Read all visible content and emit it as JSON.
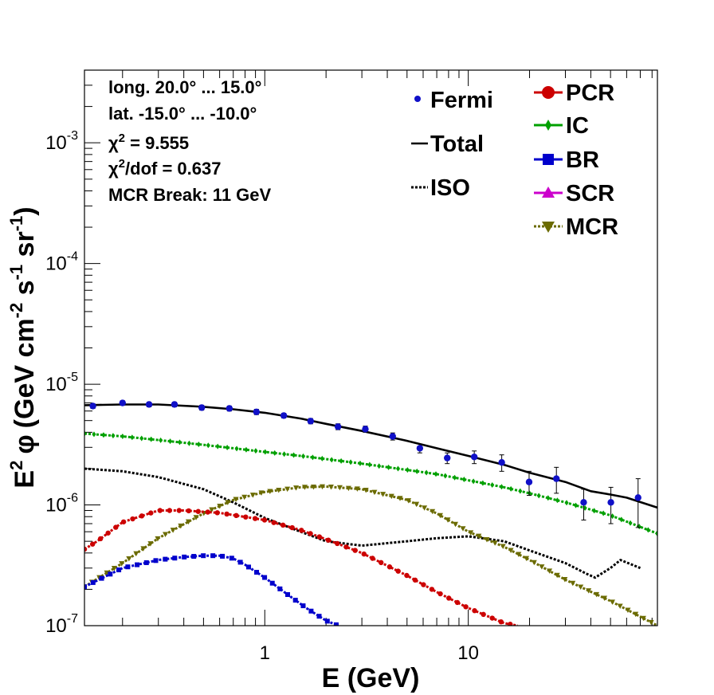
{
  "chart_data": {
    "type": "line",
    "x_scale": "log",
    "y_scale": "log",
    "xlabel": "E (GeV)",
    "ylabel_parts": {
      "e": "E",
      "e_sup": "2",
      "phi": "φ",
      "unit": "(GeV cm",
      "cm_sup": "-2",
      "s": " s",
      "s_sup": "-1",
      "sr": " sr",
      "sr_sup": "-1",
      "close": ")"
    },
    "xlim": [
      0.13,
      85
    ],
    "ylim": [
      1e-07,
      0.004
    ],
    "x_tick_labels": [
      {
        "value": 1,
        "label": "1"
      },
      {
        "value": 10,
        "label": "10"
      }
    ],
    "y_tick_labels": [
      {
        "value": 1e-07,
        "mant": "10",
        "exp": "-7"
      },
      {
        "value": 1e-06,
        "mant": "10",
        "exp": "-6"
      },
      {
        "value": 1e-05,
        "mant": "10",
        "exp": "-5"
      },
      {
        "value": 0.0001,
        "mant": "10",
        "exp": "-4"
      },
      {
        "value": 0.001,
        "mant": "10",
        "exp": "-3"
      }
    ],
    "annotations": {
      "line1": "long. 20.0° ... 15.0°",
      "line2": "lat. -15.0° ... -10.0°",
      "chi_sym": "χ",
      "chi_sup": "2",
      "chi2_rest": " = 9.555",
      "chidof_rest": "/dof = 0.637",
      "line5": "MCR Break: 11 GeV"
    },
    "legend": {
      "fermi": "Fermi",
      "total": "Total",
      "iso": "ISO",
      "pcr": "PCR",
      "ic": "IC",
      "br": "BR",
      "scr": "SCR",
      "mcr": "MCR"
    },
    "colors": {
      "fermi": "#1010c8",
      "total": "#000000",
      "iso": "#000000",
      "pcr": "#cc0000",
      "ic": "#00a000",
      "br": "#0000cc",
      "scr": "#cc00cc",
      "mcr": "#6b6b00"
    },
    "fermi_points": [
      {
        "x": 0.143,
        "y": 6.6e-06,
        "err": 3e-07
      },
      {
        "x": 0.2,
        "y": 7e-06,
        "err": 3e-07
      },
      {
        "x": 0.27,
        "y": 6.8e-06,
        "err": 3e-07
      },
      {
        "x": 0.36,
        "y": 6.8e-06,
        "err": 3e-07
      },
      {
        "x": 0.49,
        "y": 6.4e-06,
        "err": 3e-07
      },
      {
        "x": 0.67,
        "y": 6.3e-06,
        "err": 3e-07
      },
      {
        "x": 0.91,
        "y": 5.9e-06,
        "err": 3e-07
      },
      {
        "x": 1.24,
        "y": 5.5e-06,
        "err": 2.5e-07
      },
      {
        "x": 1.68,
        "y": 4.95e-06,
        "err": 2.5e-07
      },
      {
        "x": 2.29,
        "y": 4.45e-06,
        "err": 2.5e-07
      },
      {
        "x": 3.12,
        "y": 4.25e-06,
        "err": 2.5e-07
      },
      {
        "x": 4.25,
        "y": 3.7e-06,
        "err": 2.5e-07
      },
      {
        "x": 5.78,
        "y": 2.95e-06,
        "err": 2.5e-07
      },
      {
        "x": 7.88,
        "y": 2.45e-06,
        "err": 2.5e-07
      },
      {
        "x": 10.7,
        "y": 2.5e-06,
        "err": 3e-07
      },
      {
        "x": 14.6,
        "y": 2.25e-06,
        "err": 3.5e-07
      },
      {
        "x": 19.9,
        "y": 1.55e-06,
        "err": 3.5e-07
      },
      {
        "x": 27.1,
        "y": 1.65e-06,
        "err": 4e-07
      },
      {
        "x": 36.9,
        "y": 1.05e-06,
        "err": 3e-07
      },
      {
        "x": 50.2,
        "y": 1.05e-06,
        "err": 3.5e-07
      },
      {
        "x": 68.3,
        "y": 1.15e-06,
        "err": 5e-07
      }
    ],
    "series": [
      {
        "key": "total",
        "x": [
          0.13,
          0.2,
          0.3,
          0.5,
          0.7,
          1.0,
          1.5,
          2.0,
          3.0,
          5.0,
          7.0,
          10.0,
          15.0,
          20.0,
          30.0,
          40.0,
          50.0,
          60.0,
          85.0
        ],
        "y": [
          6.7e-06,
          6.8e-06,
          6.8e-06,
          6.5e-06,
          6.2e-06,
          5.8e-06,
          5.2e-06,
          4.7e-06,
          4.1e-06,
          3.4e-06,
          2.95e-06,
          2.55e-06,
          2.15e-06,
          1.85e-06,
          1.55e-06,
          1.3e-06,
          1.22e-06,
          1.15e-06,
          9.5e-07
        ]
      },
      {
        "key": "ic",
        "x": [
          0.13,
          0.2,
          0.3,
          0.5,
          0.7,
          1.0,
          1.5,
          2.0,
          3.0,
          5.0,
          7.0,
          10.0,
          15.0,
          20.0,
          30.0,
          50.0,
          85.0
        ],
        "y": [
          3.9e-06,
          3.7e-06,
          3.45e-06,
          3.15e-06,
          2.95e-06,
          2.75e-06,
          2.55e-06,
          2.4e-06,
          2.2e-06,
          1.95e-06,
          1.8e-06,
          1.6e-06,
          1.4e-06,
          1.25e-06,
          1.05e-06,
          8.2e-07,
          5.8e-07
        ]
      },
      {
        "key": "iso",
        "x": [
          0.13,
          0.2,
          0.3,
          0.5,
          0.7,
          1.0,
          1.5,
          2.0,
          3.0,
          5.0,
          7.0,
          10.0,
          15.0,
          20.0,
          30.0,
          38.0,
          42.0,
          50.0,
          56.0,
          70.0
        ],
        "y": [
          2e-06,
          1.9e-06,
          1.7e-06,
          1.35e-06,
          1.05e-06,
          7.8e-07,
          6e-07,
          5e-07,
          4.6e-07,
          5e-07,
          5.3e-07,
          5.5e-07,
          5e-07,
          4.2e-07,
          3.3e-07,
          2.7e-07,
          2.5e-07,
          3e-07,
          3.5e-07,
          3e-07
        ]
      },
      {
        "key": "mcr",
        "x": [
          0.13,
          0.2,
          0.3,
          0.5,
          0.7,
          1.0,
          1.5,
          2.0,
          3.0,
          5.0,
          7.0,
          10.0,
          15.0,
          20.0,
          30.0,
          50.0,
          85.0
        ],
        "y": [
          2.1e-07,
          3.3e-07,
          5.3e-07,
          8.5e-07,
          1.1e-06,
          1.28e-06,
          1.4e-06,
          1.42e-06,
          1.35e-06,
          1.1e-06,
          8.5e-07,
          6e-07,
          4.5e-07,
          3.5e-07,
          2.4e-07,
          1.6e-07,
          1e-07
        ]
      },
      {
        "key": "pcr",
        "x": [
          0.13,
          0.15,
          0.2,
          0.3,
          0.4,
          0.6,
          1.0,
          1.5,
          2.0,
          3.0,
          5.0,
          7.0,
          10.0,
          15.0,
          17.5
        ],
        "y": [
          4.3e-07,
          5e-07,
          7.2e-07,
          9e-07,
          9e-07,
          8.6e-07,
          7.5e-07,
          6.2e-07,
          5.2e-07,
          4e-07,
          2.6e-07,
          1.9e-07,
          1.4e-07,
          1.05e-07,
          1e-07
        ]
      },
      {
        "key": "br",
        "x": [
          0.13,
          0.2,
          0.3,
          0.4,
          0.5,
          0.6,
          0.7,
          0.8,
          1.0,
          1.3,
          1.6,
          2.0,
          2.3
        ],
        "y": [
          2.1e-07,
          3e-07,
          3.5e-07,
          3.7e-07,
          3.8e-07,
          3.8e-07,
          3.6e-07,
          3.2e-07,
          2.5e-07,
          1.8e-07,
          1.4e-07,
          1.1e-07,
          1e-07
        ]
      }
    ]
  }
}
